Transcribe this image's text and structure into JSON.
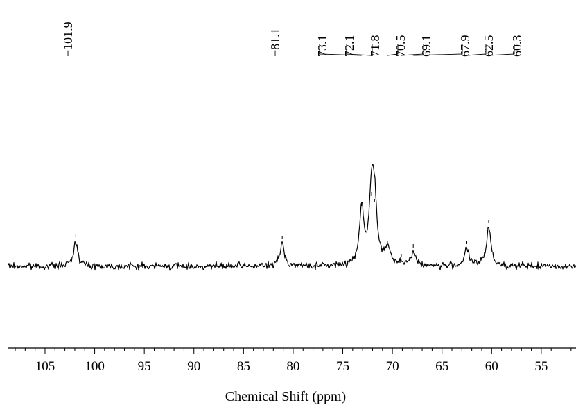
{
  "chart_data": {
    "type": "line",
    "xlabel": "Chemical Shift (ppm)",
    "ylabel": "",
    "xlim": [
      108.7,
      51.5
    ],
    "x_reversed": true,
    "x_ticks": [
      105,
      100,
      95,
      90,
      85,
      80,
      75,
      70,
      65,
      60,
      55
    ],
    "x_tick_labels": [
      "105",
      "100",
      "95",
      "90",
      "85",
      "80",
      "75",
      "70",
      "65",
      "60",
      "55"
    ],
    "minor_tick_step": 1,
    "grid": false,
    "legend": "none",
    "peaks": [
      {
        "ppm": 101.9,
        "label": "−101.9",
        "height": 0.35
      },
      {
        "ppm": 81.1,
        "label": "−81.1",
        "height": 0.32
      },
      {
        "ppm": 73.1,
        "label": "73.1",
        "height": 0.8
      },
      {
        "ppm": 72.1,
        "label": "72.1",
        "height": 0.95
      },
      {
        "ppm": 71.8,
        "label": "71.8",
        "height": 0.85
      },
      {
        "ppm": 70.5,
        "label": "70.5",
        "height": 0.25
      },
      {
        "ppm": 69.1,
        "label": "69.1",
        "height": 0.06
      },
      {
        "ppm": 67.9,
        "label": "67.9",
        "height": 0.2
      },
      {
        "ppm": 62.5,
        "label": "62.5",
        "height": 0.25
      },
      {
        "ppm": 60.3,
        "label": "60.3",
        "height": 0.55
      }
    ],
    "colors": {
      "trace": "#000000",
      "axis": "#000000"
    }
  }
}
